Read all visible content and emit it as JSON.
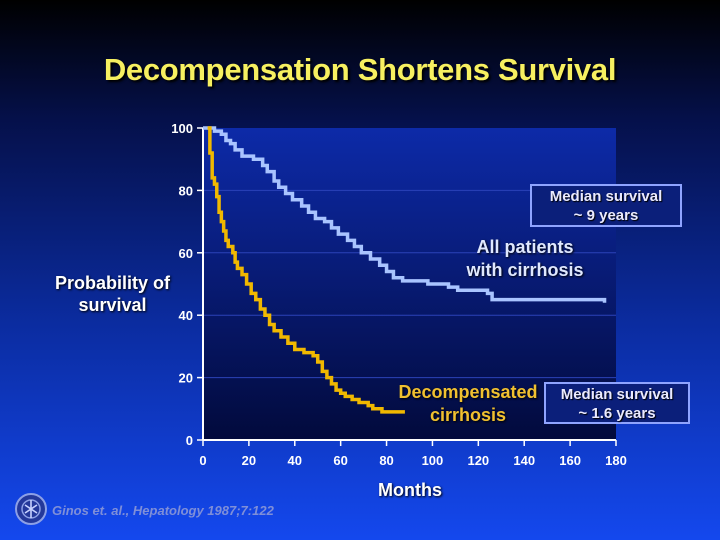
{
  "slide": {
    "title": "Decompensation Shortens Survival",
    "citation": "Ginos et. al., Hepatology 1987;7:122"
  },
  "colors": {
    "title": "#f7f060",
    "all_patients_curve": "#a9c4ff",
    "decompensated_curve": "#f0b800",
    "plot_background_top": "#0d2aa8",
    "plot_background_bottom": "#020a3c",
    "gridline": "#2b42b8",
    "box_border": "#8fa4ff"
  },
  "icons": {
    "logo": "seal-logo-icon"
  },
  "chart_data": {
    "type": "line",
    "title": "Decompensation Shortens Survival",
    "xlabel": "Months",
    "ylabel": "Probability of survival",
    "xlim": [
      0,
      180
    ],
    "ylim": [
      0,
      100
    ],
    "xticks": [
      0,
      20,
      40,
      60,
      80,
      100,
      120,
      140,
      160,
      180
    ],
    "yticks": [
      0,
      20,
      40,
      60,
      80,
      100
    ],
    "grid": "horizontal",
    "legend": "none",
    "annotations": {
      "all_patients": "All patients with cirrhosis",
      "all_patients_lines": [
        "All patients",
        "with cirrhosis"
      ],
      "decompensated": "Decompensated cirrhosis",
      "decompensated_lines": [
        "Decompensated",
        "cirrhosis"
      ],
      "median_all": [
        "Median survival",
        "~ 9 years"
      ],
      "median_decompensated": [
        "Median survival",
        "~ 1.6 years"
      ]
    },
    "series": [
      {
        "key": "all",
        "color": "#a9c4ff",
        "points": [
          [
            0,
            100
          ],
          [
            3,
            100
          ],
          [
            5,
            99
          ],
          [
            8,
            98
          ],
          [
            10,
            96
          ],
          [
            12,
            95
          ],
          [
            14,
            93
          ],
          [
            17,
            91
          ],
          [
            22,
            90
          ],
          [
            26,
            88
          ],
          [
            28,
            86
          ],
          [
            31,
            83
          ],
          [
            33,
            81
          ],
          [
            36,
            79
          ],
          [
            39,
            77
          ],
          [
            43,
            75
          ],
          [
            46,
            73
          ],
          [
            49,
            71
          ],
          [
            53,
            70
          ],
          [
            56,
            68
          ],
          [
            59,
            66
          ],
          [
            63,
            64
          ],
          [
            66,
            62
          ],
          [
            69,
            60
          ],
          [
            73,
            58
          ],
          [
            77,
            56
          ],
          [
            80,
            54
          ],
          [
            83,
            52
          ],
          [
            87,
            51
          ],
          [
            91,
            51
          ],
          [
            94,
            51
          ],
          [
            98,
            50
          ],
          [
            103,
            50
          ],
          [
            107,
            49
          ],
          [
            111,
            48
          ],
          [
            116,
            48
          ],
          [
            120,
            48
          ],
          [
            124,
            47
          ],
          [
            125,
            47
          ],
          [
            126,
            45
          ],
          [
            135,
            45
          ],
          [
            150,
            45
          ],
          [
            160,
            45
          ],
          [
            175,
            44
          ]
        ]
      },
      {
        "key": "decompensated",
        "color": "#f0b800",
        "points": [
          [
            2,
            100
          ],
          [
            3,
            92
          ],
          [
            4,
            84
          ],
          [
            5,
            82
          ],
          [
            6,
            78
          ],
          [
            7,
            73
          ],
          [
            8,
            70
          ],
          [
            9,
            67
          ],
          [
            10,
            64
          ],
          [
            11,
            62
          ],
          [
            13,
            60
          ],
          [
            14,
            57
          ],
          [
            15,
            55
          ],
          [
            17,
            53
          ],
          [
            19,
            50
          ],
          [
            21,
            47
          ],
          [
            23,
            45
          ],
          [
            25,
            42
          ],
          [
            27,
            40
          ],
          [
            29,
            37
          ],
          [
            31,
            35
          ],
          [
            34,
            33
          ],
          [
            37,
            31
          ],
          [
            40,
            29
          ],
          [
            44,
            28
          ],
          [
            48,
            27
          ],
          [
            50,
            25
          ],
          [
            52,
            22
          ],
          [
            54,
            20
          ],
          [
            56,
            18
          ],
          [
            58,
            16
          ],
          [
            60,
            15
          ],
          [
            62,
            14
          ],
          [
            65,
            13
          ],
          [
            68,
            12
          ],
          [
            72,
            11
          ],
          [
            74,
            10
          ],
          [
            78,
            9
          ],
          [
            82,
            9
          ],
          [
            88,
            9
          ]
        ]
      }
    ]
  }
}
